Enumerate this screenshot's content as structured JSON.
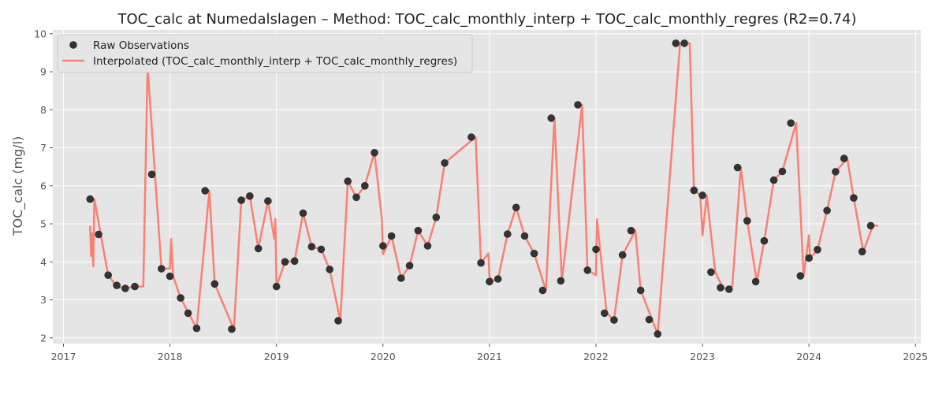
{
  "chart_data": {
    "type": "line",
    "title": "TOC_calc at Numedalslagen – Method: TOC_calc_monthly_interp + TOC_calc_monthly_regres (R2=0.74)",
    "xlabel": "",
    "ylabel": "TOC_calc (mg/l)",
    "xlim": [
      2016.9,
      2025.05
    ],
    "ylim": [
      1.85,
      10.1
    ],
    "x_ticks": [
      2017,
      2018,
      2019,
      2020,
      2021,
      2022,
      2023,
      2024,
      2025
    ],
    "y_ticks": [
      2,
      3,
      4,
      5,
      6,
      7,
      8,
      9,
      10
    ],
    "grid": true,
    "legend": "upper-left",
    "colors": {
      "raw": "#333333",
      "interp": "#fa8072",
      "background": "#e5e5e5",
      "grid": "#ffffff"
    },
    "series": [
      {
        "name": "Raw Observations",
        "kind": "scatter",
        "points": [
          [
            2017.25,
            5.65
          ],
          [
            2017.33,
            4.72
          ],
          [
            2017.42,
            3.65
          ],
          [
            2017.5,
            3.38
          ],
          [
            2017.58,
            3.3
          ],
          [
            2017.67,
            3.35
          ],
          [
            2017.75,
            9.18
          ],
          [
            2017.83,
            6.3
          ],
          [
            2017.92,
            3.82
          ],
          [
            2018.0,
            3.62
          ],
          [
            2018.1,
            3.05
          ],
          [
            2018.17,
            2.65
          ],
          [
            2018.25,
            2.25
          ],
          [
            2018.33,
            5.87
          ],
          [
            2018.42,
            3.42
          ],
          [
            2018.58,
            2.23
          ],
          [
            2018.67,
            5.62
          ],
          [
            2018.75,
            5.73
          ],
          [
            2018.83,
            4.35
          ],
          [
            2018.92,
            5.6
          ],
          [
            2019.0,
            3.35
          ],
          [
            2019.08,
            4.0
          ],
          [
            2019.17,
            4.02
          ],
          [
            2019.25,
            5.28
          ],
          [
            2019.33,
            4.4
          ],
          [
            2019.42,
            4.33
          ],
          [
            2019.5,
            3.8
          ],
          [
            2019.58,
            2.45
          ],
          [
            2019.67,
            6.12
          ],
          [
            2019.75,
            5.7
          ],
          [
            2019.83,
            6.0
          ],
          [
            2019.92,
            6.87
          ],
          [
            2020.0,
            4.42
          ],
          [
            2020.08,
            4.68
          ],
          [
            2020.17,
            3.57
          ],
          [
            2020.25,
            3.9
          ],
          [
            2020.33,
            4.82
          ],
          [
            2020.42,
            4.42
          ],
          [
            2020.5,
            5.17
          ],
          [
            2020.58,
            6.6
          ],
          [
            2020.83,
            7.28
          ],
          [
            2020.92,
            3.97
          ],
          [
            2021.0,
            3.48
          ],
          [
            2021.08,
            3.55
          ],
          [
            2021.17,
            4.73
          ],
          [
            2021.25,
            5.43
          ],
          [
            2021.33,
            4.68
          ],
          [
            2021.42,
            4.22
          ],
          [
            2021.5,
            3.25
          ],
          [
            2021.58,
            7.78
          ],
          [
            2021.67,
            3.5
          ],
          [
            2021.83,
            8.13
          ],
          [
            2021.92,
            3.78
          ],
          [
            2022.0,
            4.33
          ],
          [
            2022.08,
            2.65
          ],
          [
            2022.17,
            2.47
          ],
          [
            2022.25,
            4.18
          ],
          [
            2022.33,
            4.82
          ],
          [
            2022.42,
            3.25
          ],
          [
            2022.5,
            2.48
          ],
          [
            2022.58,
            2.1
          ],
          [
            2022.75,
            9.75
          ],
          [
            2022.83,
            9.75
          ],
          [
            2022.92,
            5.88
          ],
          [
            2023.0,
            5.75
          ],
          [
            2023.08,
            3.73
          ],
          [
            2023.17,
            3.32
          ],
          [
            2023.25,
            3.28
          ],
          [
            2023.33,
            6.48
          ],
          [
            2023.42,
            5.08
          ],
          [
            2023.5,
            3.48
          ],
          [
            2023.58,
            4.55
          ],
          [
            2023.67,
            6.15
          ],
          [
            2023.75,
            6.38
          ],
          [
            2023.83,
            7.65
          ],
          [
            2023.92,
            3.63
          ],
          [
            2024.0,
            4.1
          ],
          [
            2024.08,
            4.32
          ],
          [
            2024.17,
            5.35
          ],
          [
            2024.25,
            6.37
          ],
          [
            2024.33,
            6.72
          ],
          [
            2024.42,
            5.68
          ],
          [
            2024.5,
            4.27
          ],
          [
            2024.58,
            4.95
          ]
        ]
      },
      {
        "name": "Interpolated (TOC_calc_monthly_interp + TOC_calc_monthly_regres)",
        "kind": "line",
        "points": [
          [
            2017.25,
            4.95
          ],
          [
            2017.26,
            4.15
          ],
          [
            2017.27,
            4.75
          ],
          [
            2017.28,
            3.88
          ],
          [
            2017.29,
            5.65
          ],
          [
            2017.42,
            3.65
          ],
          [
            2017.5,
            3.35
          ],
          [
            2017.58,
            3.3
          ],
          [
            2017.67,
            3.35
          ],
          [
            2017.75,
            3.35
          ],
          [
            2017.79,
            9.15
          ],
          [
            2017.92,
            3.82
          ],
          [
            2018.0,
            3.82
          ],
          [
            2018.01,
            4.6
          ],
          [
            2018.03,
            3.62
          ],
          [
            2018.1,
            3.05
          ],
          [
            2018.25,
            2.25
          ],
          [
            2018.37,
            5.87
          ],
          [
            2018.42,
            3.42
          ],
          [
            2018.6,
            2.23
          ],
          [
            2018.67,
            5.62
          ],
          [
            2018.75,
            5.73
          ],
          [
            2018.83,
            4.35
          ],
          [
            2018.92,
            5.6
          ],
          [
            2018.98,
            4.6
          ],
          [
            2018.99,
            5.13
          ],
          [
            2019.0,
            3.35
          ],
          [
            2019.08,
            4.0
          ],
          [
            2019.17,
            4.02
          ],
          [
            2019.25,
            5.28
          ],
          [
            2019.33,
            4.4
          ],
          [
            2019.42,
            4.33
          ],
          [
            2019.5,
            3.8
          ],
          [
            2019.6,
            2.45
          ],
          [
            2019.67,
            6.12
          ],
          [
            2019.75,
            5.7
          ],
          [
            2019.83,
            6.0
          ],
          [
            2019.92,
            6.87
          ],
          [
            2019.99,
            5.13
          ],
          [
            2020.0,
            4.2
          ],
          [
            2020.08,
            4.68
          ],
          [
            2020.17,
            3.57
          ],
          [
            2020.25,
            3.9
          ],
          [
            2020.33,
            4.82
          ],
          [
            2020.42,
            4.42
          ],
          [
            2020.5,
            5.17
          ],
          [
            2020.58,
            6.6
          ],
          [
            2020.87,
            7.28
          ],
          [
            2020.92,
            3.97
          ],
          [
            2020.99,
            4.22
          ],
          [
            2021.0,
            3.6
          ],
          [
            2021.04,
            3.5
          ],
          [
            2021.08,
            3.55
          ],
          [
            2021.17,
            4.73
          ],
          [
            2021.25,
            5.43
          ],
          [
            2021.33,
            4.68
          ],
          [
            2021.42,
            4.22
          ],
          [
            2021.53,
            3.25
          ],
          [
            2021.61,
            7.78
          ],
          [
            2021.68,
            3.5
          ],
          [
            2021.87,
            8.13
          ],
          [
            2021.92,
            3.78
          ],
          [
            2022.0,
            3.65
          ],
          [
            2022.01,
            5.12
          ],
          [
            2022.1,
            2.65
          ],
          [
            2022.17,
            2.47
          ],
          [
            2022.25,
            4.18
          ],
          [
            2022.37,
            4.82
          ],
          [
            2022.42,
            3.25
          ],
          [
            2022.58,
            2.1
          ],
          [
            2022.79,
            9.75
          ],
          [
            2022.88,
            9.75
          ],
          [
            2022.92,
            5.88
          ],
          [
            2022.98,
            5.75
          ],
          [
            2023.0,
            4.7
          ],
          [
            2023.04,
            5.75
          ],
          [
            2023.12,
            3.73
          ],
          [
            2023.19,
            3.32
          ],
          [
            2023.25,
            3.28
          ],
          [
            2023.28,
            3.35
          ],
          [
            2023.36,
            6.48
          ],
          [
            2023.42,
            5.08
          ],
          [
            2023.51,
            3.48
          ],
          [
            2023.58,
            4.55
          ],
          [
            2023.67,
            6.15
          ],
          [
            2023.75,
            6.38
          ],
          [
            2023.88,
            7.65
          ],
          [
            2023.95,
            3.63
          ],
          [
            2024.0,
            4.7
          ],
          [
            2024.01,
            4.1
          ],
          [
            2024.08,
            4.32
          ],
          [
            2024.17,
            5.35
          ],
          [
            2024.25,
            6.37
          ],
          [
            2024.36,
            6.72
          ],
          [
            2024.42,
            5.68
          ],
          [
            2024.51,
            4.27
          ],
          [
            2024.6,
            4.95
          ],
          [
            2024.65,
            4.95
          ]
        ]
      }
    ]
  }
}
